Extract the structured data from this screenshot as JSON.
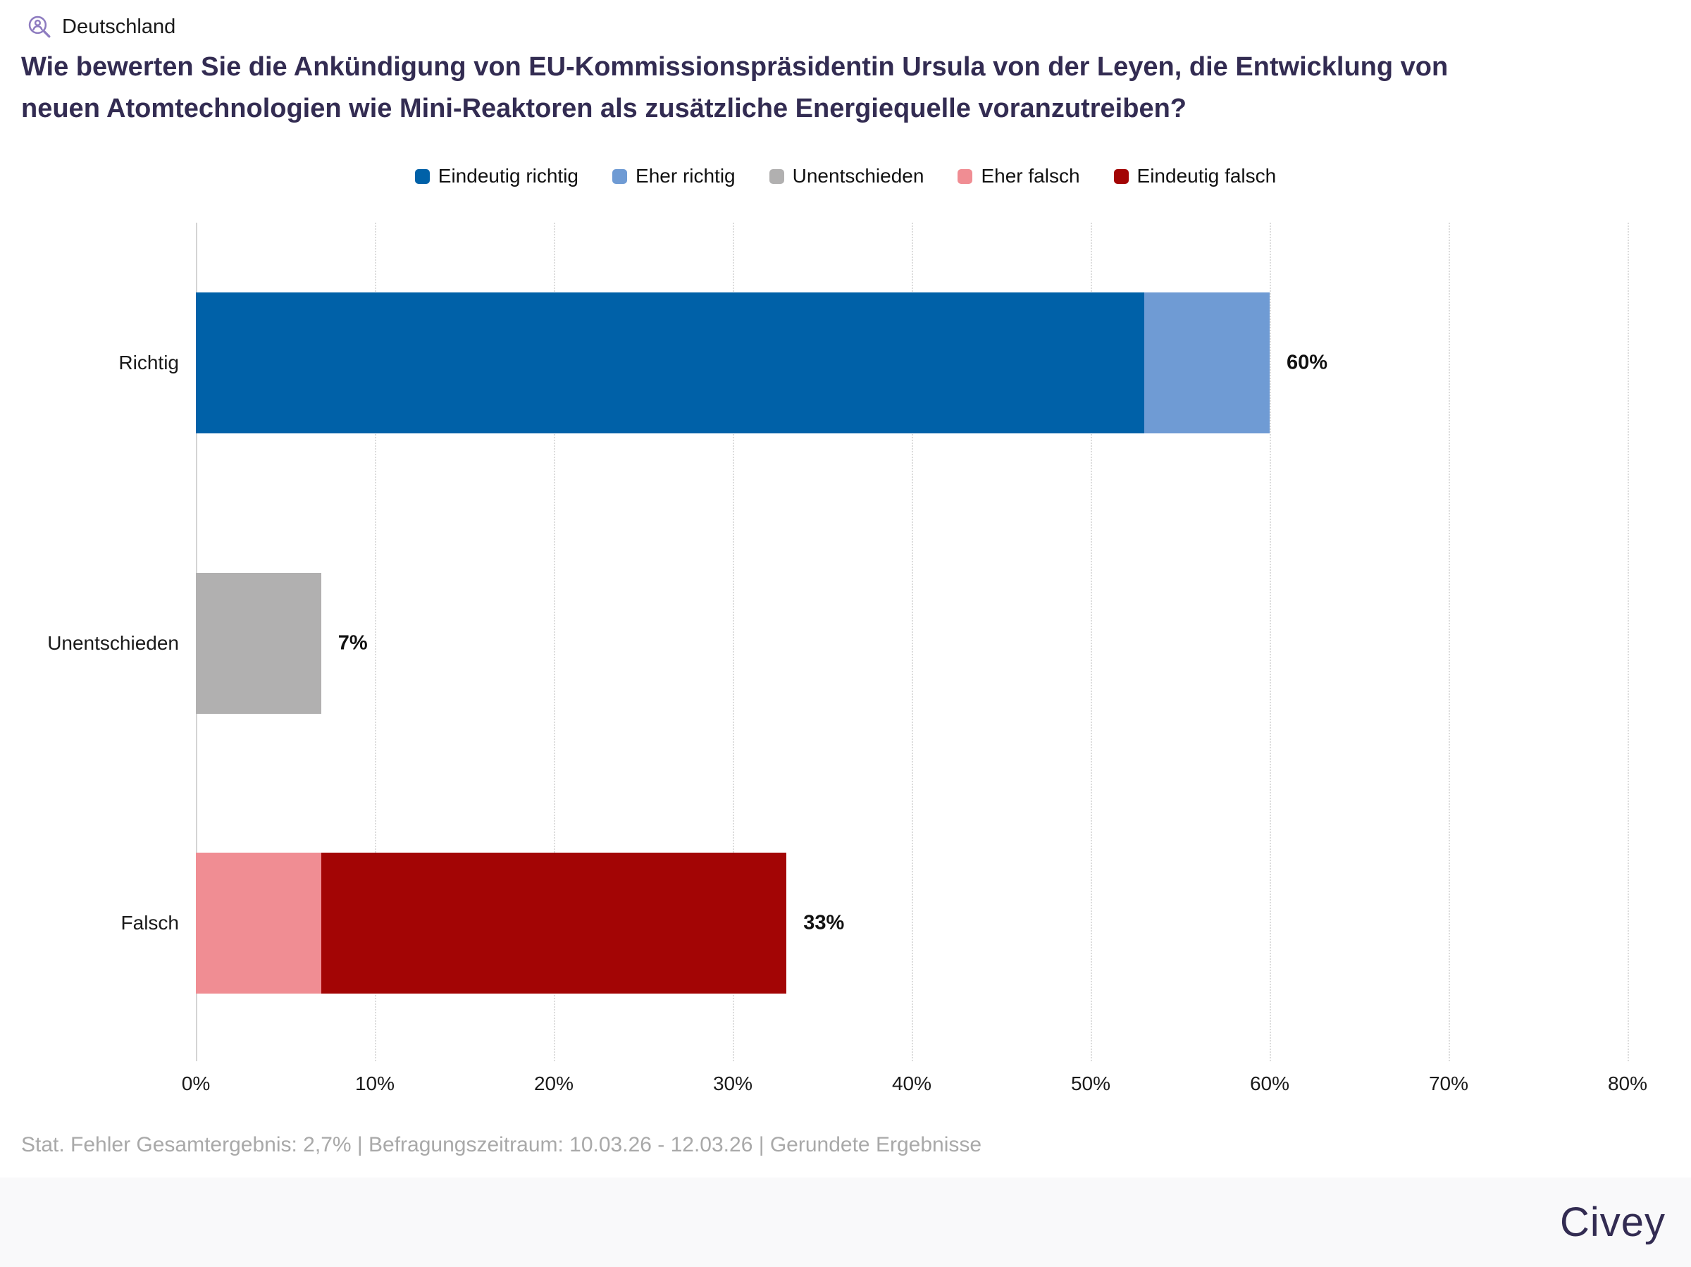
{
  "header": {
    "region_label": "Deutschland",
    "icon": "person-search-icon"
  },
  "title": "Wie bewerten Sie die Ankündigung von EU-Kommissionspräsidentin Ursula von der Leyen, die Entwicklung von neuen Atomtechnologien wie Mini-Reaktoren als zusätzliche Energiequelle voranzutreiben?",
  "chart_data": {
    "type": "bar",
    "orientation": "horizontal",
    "stacked": true,
    "legend_position": "top",
    "legend": [
      {
        "label": "Eindeutig richtig",
        "color": "#0061a8"
      },
      {
        "label": "Eher richtig",
        "color": "#6f9bd4"
      },
      {
        "label": "Unentschieden",
        "color": "#b1b0b0"
      },
      {
        "label": "Eher falsch",
        "color": "#f08d93"
      },
      {
        "label": "Eindeutig falsch",
        "color": "#a30505"
      }
    ],
    "categories": [
      "Richtig",
      "Unentschieden",
      "Falsch"
    ],
    "rows": [
      {
        "category": "Richtig",
        "total": 60,
        "total_label": "60%",
        "segments": [
          {
            "name": "Eindeutig richtig",
            "value": 53,
            "color": "#0061a8"
          },
          {
            "name": "Eher richtig",
            "value": 7,
            "color": "#6f9bd4"
          }
        ]
      },
      {
        "category": "Unentschieden",
        "total": 7,
        "total_label": "7%",
        "segments": [
          {
            "name": "Unentschieden",
            "value": 7,
            "color": "#b1b0b0"
          }
        ]
      },
      {
        "category": "Falsch",
        "total": 33,
        "total_label": "33%",
        "segments": [
          {
            "name": "Eher falsch",
            "value": 7,
            "color": "#f08d93"
          },
          {
            "name": "Eindeutig falsch",
            "value": 26,
            "color": "#a30505"
          }
        ]
      }
    ],
    "x_axis": {
      "min": 0,
      "max": 80,
      "ticks": [
        "0%",
        "10%",
        "20%",
        "30%",
        "40%",
        "50%",
        "60%",
        "70%",
        "80%"
      ],
      "grid": true
    }
  },
  "footnote": "Stat. Fehler Gesamtergebnis: 2,7% | Befragungszeitraum: 10.03.26 - 12.03.26 | Gerundete Ergebnisse",
  "footer": {
    "brand": "Civey"
  }
}
